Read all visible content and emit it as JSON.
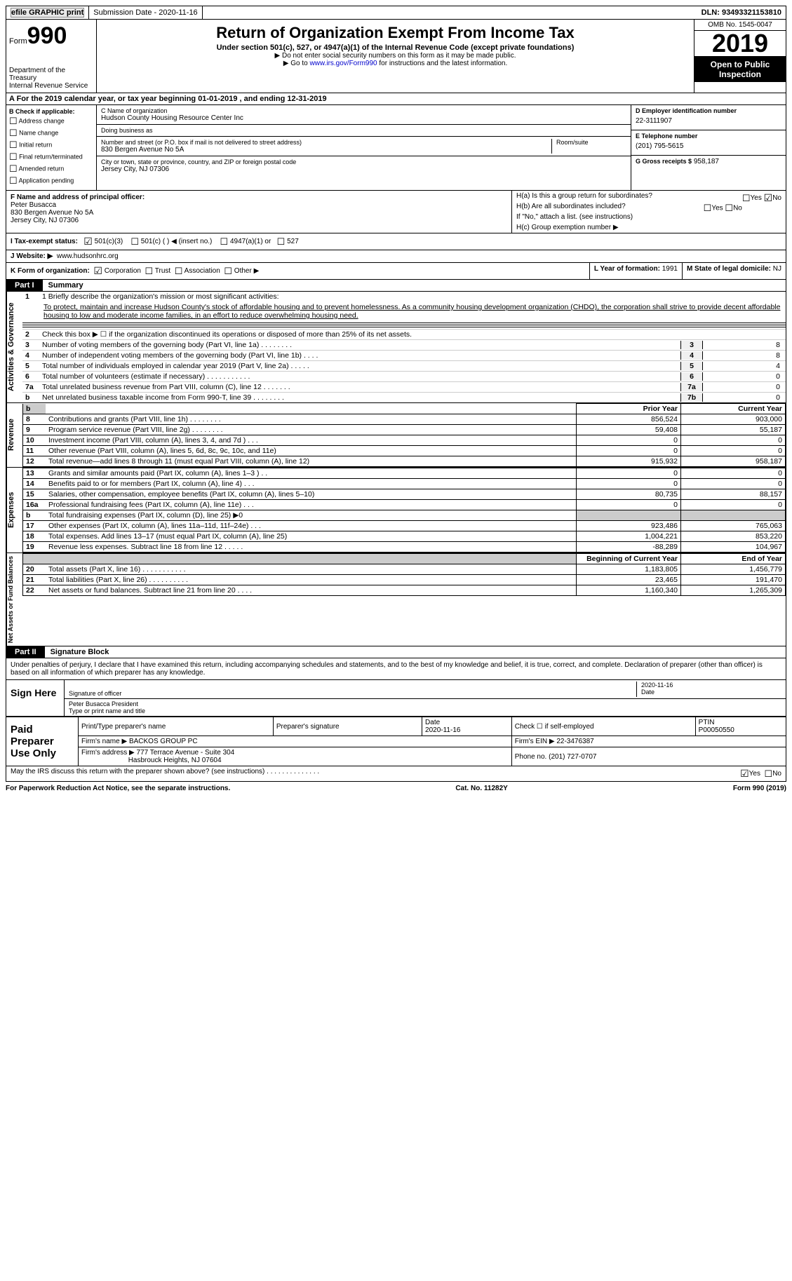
{
  "top_bar": {
    "efile": "efile GRAPHIC print",
    "submission": "Submission Date - 2020-11-16",
    "dln": "DLN: 93493321153810"
  },
  "header": {
    "form_word": "Form",
    "form_num": "990",
    "dept1": "Department of the Treasury",
    "dept2": "Internal Revenue Service",
    "title": "Return of Organization Exempt From Income Tax",
    "subtitle": "Under section 501(c), 527, or 4947(a)(1) of the Internal Revenue Code (except private foundations)",
    "note1": "▶ Do not enter social security numbers on this form as it may be made public.",
    "note2_pre": "▶ Go to ",
    "note2_link": "www.irs.gov/Form990",
    "note2_post": " for instructions and the latest information.",
    "omb": "OMB No. 1545-0047",
    "year": "2019",
    "open": "Open to Public Inspection"
  },
  "row_a": "A For the 2019 calendar year, or tax year beginning 01-01-2019   , and ending 12-31-2019",
  "section_b": {
    "title": "B Check if applicable:",
    "opts": [
      "Address change",
      "Name change",
      "Initial return",
      "Final return/terminated",
      "Amended return",
      "Application pending"
    ]
  },
  "section_c": {
    "name_lbl": "C Name of organization",
    "name": "Hudson County Housing Resource Center Inc",
    "dba_lbl": "Doing business as",
    "dba": "",
    "street_lbl": "Number and street (or P.O. box if mail is not delivered to street address)",
    "street": "830 Bergen Avenue No 5A",
    "room_lbl": "Room/suite",
    "city_lbl": "City or town, state or province, country, and ZIP or foreign postal code",
    "city": "Jersey City, NJ  07306"
  },
  "section_d": {
    "ein_lbl": "D Employer identification number",
    "ein": "22-3111907",
    "tel_lbl": "E Telephone number",
    "tel": "(201) 795-5615",
    "gross_lbl": "G Gross receipts $",
    "gross": "958,187"
  },
  "section_f": {
    "lbl": "F Name and address of principal officer:",
    "name": "Peter Busacca",
    "addr1": "830 Bergen Avenue No 5A",
    "addr2": "Jersey City, NJ  07306"
  },
  "section_h": {
    "ha": "H(a)  Is this a group return for subordinates?",
    "hb": "H(b)  Are all subordinates included?",
    "hb_note": "If \"No,\" attach a list. (see instructions)",
    "hc": "H(c)  Group exemption number ▶",
    "yes": "Yes",
    "no": "No"
  },
  "row_i": {
    "lbl": "I   Tax-exempt status:",
    "o1": "501(c)(3)",
    "o2": "501(c) (  ) ◀ (insert no.)",
    "o3": "4947(a)(1) or",
    "o4": "527"
  },
  "row_j": {
    "lbl": "J   Website: ▶",
    "val": "www.hudsonhrc.org"
  },
  "row_k": {
    "lbl": "K Form of organization:",
    "o1": "Corporation",
    "o2": "Trust",
    "o3": "Association",
    "o4": "Other ▶",
    "l_lbl": "L Year of formation:",
    "l_val": "1991",
    "m_lbl": "M State of legal domicile:",
    "m_val": "NJ"
  },
  "part1": {
    "tab": "Part I",
    "title": "Summary",
    "side_labels": [
      "Activities & Governance",
      "Revenue",
      "Expenses",
      "Net Assets or Fund Balances"
    ],
    "line1_lbl": "1  Briefly describe the organization's mission or most significant activities:",
    "mission": "To protect, maintain and increase Hudson County's stock of affordable housing and to prevent homelessness. As a community housing development organization (CHDO), the corporation shall strive to provide decent affordable housing to low and moderate income families, in an effort to reduce overwhelming housing need.",
    "line2": "Check this box ▶ ☐  if the organization discontinued its operations or disposed of more than 25% of its net assets.",
    "gov_lines": [
      {
        "n": "3",
        "d": "Number of voting members of the governing body (Part VI, line 1a)  .    .    .    .    .    .    .    .",
        "b": "3",
        "v": "8"
      },
      {
        "n": "4",
        "d": "Number of independent voting members of the governing body (Part VI, line 1b)    .    .    .    .",
        "b": "4",
        "v": "8"
      },
      {
        "n": "5",
        "d": "Total number of individuals employed in calendar year 2019 (Part V, line 2a)    .    .    .    .    .",
        "b": "5",
        "v": "4"
      },
      {
        "n": "6",
        "d": "Total number of volunteers (estimate if necessary)    .    .    .    .    .    .    .    .    .    .    .",
        "b": "6",
        "v": "0"
      },
      {
        "n": "7a",
        "d": "Total unrelated business revenue from Part VIII, column (C), line 12    .    .    .    .    .    .    .",
        "b": "7a",
        "v": "0"
      },
      {
        "n": "b",
        "d": "Net unrelated business taxable income from Form 990-T, line 39    .    .    .    .    .    .    .    .",
        "b": "7b",
        "v": "0"
      }
    ],
    "col_hdr_prior": "Prior Year",
    "col_hdr_curr": "Current Year",
    "revenue": [
      {
        "n": "8",
        "d": "Contributions and grants (Part VIII, line 1h)    .    .    .    .    .    .    .    .",
        "p": "856,524",
        "c": "903,000"
      },
      {
        "n": "9",
        "d": "Program service revenue (Part VIII, line 2g)    .    .    .    .    .    .    .    .",
        "p": "59,408",
        "c": "55,187"
      },
      {
        "n": "10",
        "d": "Investment income (Part VIII, column (A), lines 3, 4, and 7d )    .    .    .",
        "p": "0",
        "c": "0"
      },
      {
        "n": "11",
        "d": "Other revenue (Part VIII, column (A), lines 5, 6d, 8c, 9c, 10c, and 11e)",
        "p": "0",
        "c": "0"
      },
      {
        "n": "12",
        "d": "Total revenue—add lines 8 through 11 (must equal Part VIII, column (A), line 12)",
        "p": "915,932",
        "c": "958,187"
      }
    ],
    "expenses": [
      {
        "n": "13",
        "d": "Grants and similar amounts paid (Part IX, column (A), lines 1–3 )  .    .",
        "p": "0",
        "c": "0"
      },
      {
        "n": "14",
        "d": "Benefits paid to or for members (Part IX, column (A), line 4)  .    .    .",
        "p": "0",
        "c": "0"
      },
      {
        "n": "15",
        "d": "Salaries, other compensation, employee benefits (Part IX, column (A), lines 5–10)",
        "p": "80,735",
        "c": "88,157"
      },
      {
        "n": "16a",
        "d": "Professional fundraising fees (Part IX, column (A), line 11e)    .    .    .",
        "p": "0",
        "c": "0"
      },
      {
        "n": "b",
        "d": "Total fundraising expenses (Part IX, column (D), line 25) ▶0",
        "p": "",
        "c": "",
        "shaded": true
      },
      {
        "n": "17",
        "d": "Other expenses (Part IX, column (A), lines 11a–11d, 11f–24e)    .    .    .",
        "p": "923,486",
        "c": "765,063"
      },
      {
        "n": "18",
        "d": "Total expenses. Add lines 13–17 (must equal Part IX, column (A), line 25)",
        "p": "1,004,221",
        "c": "853,220"
      },
      {
        "n": "19",
        "d": "Revenue less expenses. Subtract line 18 from line 12    .    .    .    .    .",
        "p": "-88,289",
        "c": "104,967"
      }
    ],
    "col_hdr_beg": "Beginning of Current Year",
    "col_hdr_end": "End of Year",
    "net": [
      {
        "n": "20",
        "d": "Total assets (Part X, line 16)    .    .    .    .    .    .    .    .    .    .    .",
        "p": "1,183,805",
        "c": "1,456,779"
      },
      {
        "n": "21",
        "d": "Total liabilities (Part X, line 26)    .    .    .    .    .    .    .    .    .    .",
        "p": "23,465",
        "c": "191,470"
      },
      {
        "n": "22",
        "d": "Net assets or fund balances. Subtract line 21 from line 20    .    .    .    .",
        "p": "1,160,340",
        "c": "1,265,309"
      }
    ]
  },
  "part2": {
    "tab": "Part II",
    "title": "Signature Block",
    "perjury": "Under penalties of perjury, I declare that I have examined this return, including accompanying schedules and statements, and to the best of my knowledge and belief, it is true, correct, and complete. Declaration of preparer (other than officer) is based on all information of which preparer has any knowledge.",
    "sign_here": "Sign Here",
    "sig_lbl": "Signature of officer",
    "date_lbl": "Date",
    "sig_date": "2020-11-16",
    "name_title": "Peter Busacca  President",
    "name_title_lbl": "Type or print name and title",
    "paid_prep": "Paid Preparer Use Only",
    "pp_name_lbl": "Print/Type preparer's name",
    "pp_sig_lbl": "Preparer's signature",
    "pp_date_lbl": "Date",
    "pp_date": "2020-11-16",
    "pp_check_lbl": "Check ☐ if self-employed",
    "ptin_lbl": "PTIN",
    "ptin": "P00050550",
    "firm_name_lbl": "Firm's name    ▶",
    "firm_name": "BACKOS GROUP PC",
    "firm_ein_lbl": "Firm's EIN ▶",
    "firm_ein": "22-3476387",
    "firm_addr_lbl": "Firm's address ▶",
    "firm_addr1": "777 Terrace Avenue - Suite 304",
    "firm_addr2": "Hasbrouck Heights, NJ  07604",
    "phone_lbl": "Phone no.",
    "phone": "(201) 727-0707",
    "discuss": "May the IRS discuss this return with the preparer shown above? (see instructions)    .    .    .    .    .    .    .    .    .    .    .    .    .    .",
    "discuss_yes": "Yes",
    "discuss_no": "No"
  },
  "footer": {
    "pra": "For Paperwork Reduction Act Notice, see the separate instructions.",
    "cat": "Cat. No. 11282Y",
    "form": "Form 990 (2019)"
  }
}
